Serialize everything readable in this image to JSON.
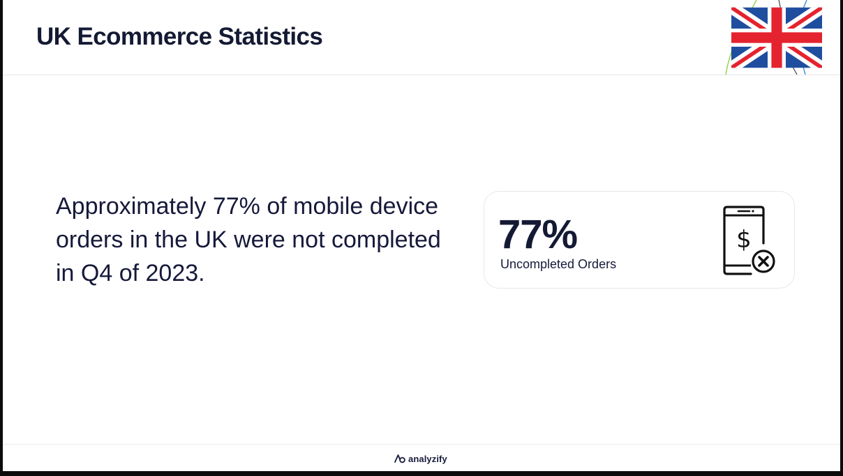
{
  "header": {
    "title": "UK Ecommerce Statistics",
    "flag_icon": "uk-flag-icon"
  },
  "main": {
    "statement": "Approximately 77% of mobile device orders in the UK were not completed in Q4 of 2023."
  },
  "stat_card": {
    "value": "77%",
    "label": "Uncompleted Orders",
    "icon": "mobile-payment-cancel-icon"
  },
  "footer": {
    "brand_name": "analyzify",
    "brand_icon": "analyzify-logo-icon"
  },
  "colors": {
    "text_dark": "#141a33",
    "flag_blue": "#1f4e9f",
    "flag_red": "#e4232f",
    "flag_white": "#ffffff"
  }
}
